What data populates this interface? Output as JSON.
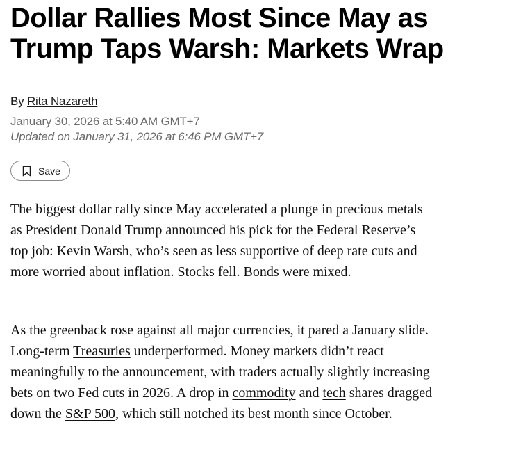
{
  "article": {
    "headline": "Dollar Rallies Most Since May as Trump Taps Warsh: Markets Wrap",
    "byline_prefix": "By",
    "author": "Rita Nazareth",
    "published": "January 30, 2026 at 5:40 AM GMT+7",
    "updated": "Updated on January 31, 2026 at 6:46 PM GMT+7",
    "save_label": "Save",
    "save_icon": "bookmark-icon",
    "paragraph1": {
      "t1": "The biggest ",
      "link_dollar": "dollar",
      "t2": " rally since May accelerated a plunge in precious metals as President Donald Trump announced his pick for the Federal Reserve’s top job: Kevin Warsh, who’s seen as less supportive of deep rate cuts and more worried about inflation. Stocks fell. Bonds were mixed."
    },
    "paragraph2": {
      "t1": "As the greenback rose against all major currencies, it pared a January slide. Long-term ",
      "link_treasuries": "Treasuries",
      "t2": " underperformed. Money markets didn’t react meaningfully to the announcement, with traders actually slightly increasing bets on two Fed cuts in 2026. A drop in ",
      "link_commodity": "commodity",
      "t3": " and ",
      "link_tech": "tech",
      "t4": " shares dragged down the ",
      "link_sp500": "S&P 500",
      "t5": ", which still notched its best month since October."
    }
  }
}
